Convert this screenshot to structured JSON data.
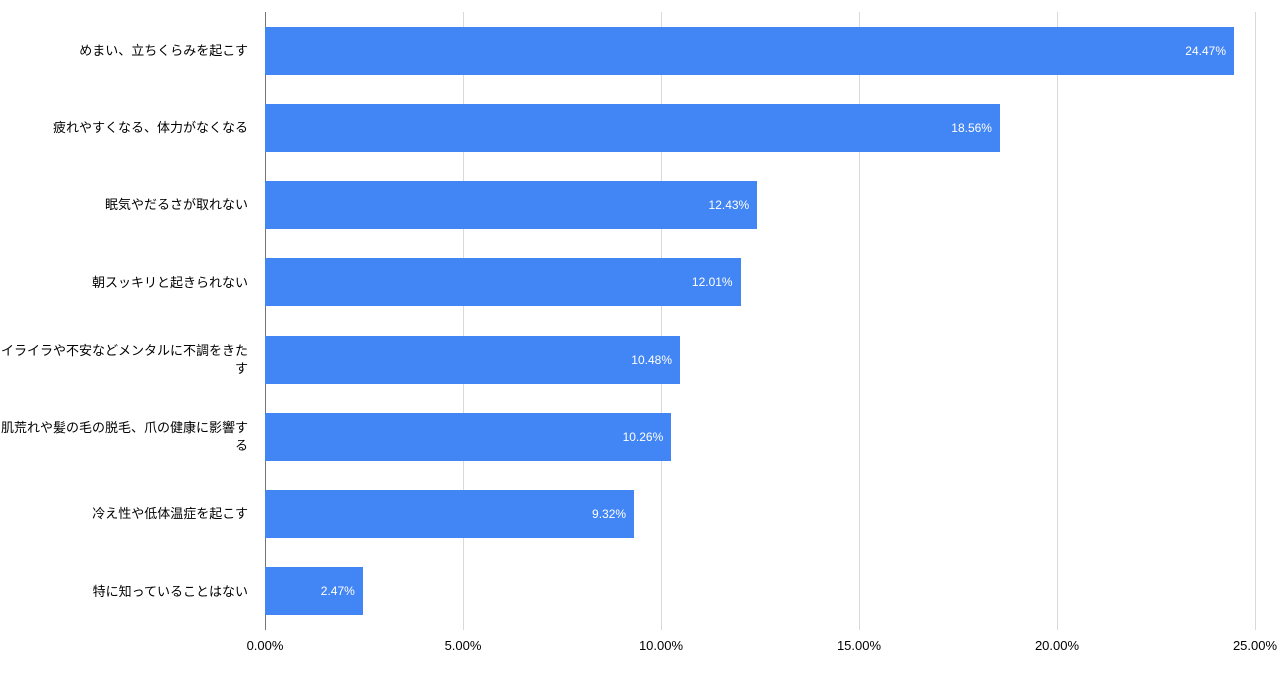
{
  "chart_data": {
    "type": "bar",
    "orientation": "horizontal",
    "title": "",
    "xlabel": "",
    "ylabel": "",
    "categories": [
      "めまい、立ちくらみを起こす",
      "疲れやすくなる、体力がなくなる",
      "眠気やだるさが取れない",
      "朝スッキリと起きられない",
      "イライラや不安などメンタルに不調をきたす",
      "肌荒れや髪の毛の脱毛、爪の健康に影響する",
      "冷え性や低体温症を起こす",
      "特に知っていることはない"
    ],
    "values": [
      24.47,
      18.56,
      12.43,
      12.01,
      10.48,
      10.26,
      9.32,
      2.47
    ],
    "value_labels": [
      "24.47%",
      "18.56%",
      "12.43%",
      "12.01%",
      "10.48%",
      "10.26%",
      "9.32%",
      "2.47%"
    ],
    "xlim": [
      0,
      25
    ],
    "x_ticks": [
      0,
      5,
      10,
      15,
      20,
      25
    ],
    "x_tick_labels": [
      "0.00%",
      "5.00%",
      "10.00%",
      "15.00%",
      "20.00%",
      "25.00%"
    ],
    "grid": true,
    "legend": "none",
    "bar_color": "#4285f4",
    "gridline_color": "#d9d9d9",
    "axis_line_color": "#757575",
    "background_color": "#ffffff"
  }
}
